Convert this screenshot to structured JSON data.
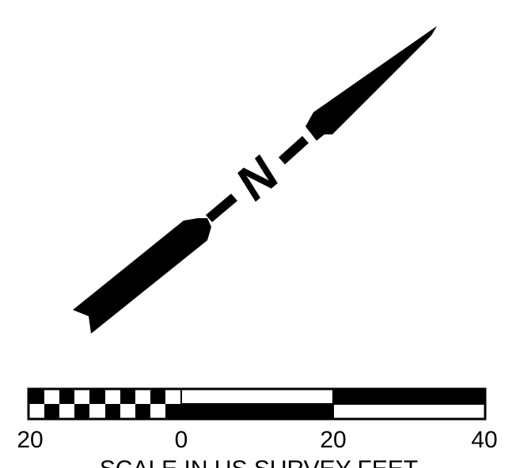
{
  "north_arrow": {
    "letter": "N"
  },
  "scale_bar": {
    "tick_labels": [
      "20",
      "0",
      "20",
      "40"
    ],
    "caption": "SCALE IN US SURVEY FEET"
  },
  "colors": {
    "ink": "#000000",
    "paper": "#ffffff"
  }
}
